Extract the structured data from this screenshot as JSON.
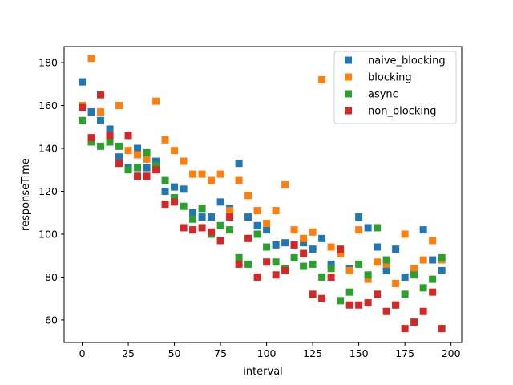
{
  "chart_data": {
    "type": "scatter",
    "title": "",
    "xlabel": "interval",
    "ylabel": "responseTime",
    "xlim": [
      -9.8,
      205.8
    ],
    "ylim": [
      49.5,
      187.5
    ],
    "xticks": [
      0,
      25,
      50,
      75,
      100,
      125,
      150,
      175,
      200
    ],
    "yticks": [
      60,
      80,
      100,
      120,
      140,
      160,
      180
    ],
    "grid": false,
    "legend_position": "upper right",
    "x": [
      0,
      5,
      10,
      15,
      20,
      25,
      30,
      35,
      40,
      45,
      50,
      55,
      60,
      65,
      70,
      75,
      80,
      85,
      90,
      95,
      100,
      105,
      110,
      115,
      120,
      125,
      130,
      135,
      140,
      145,
      150,
      155,
      160,
      165,
      170,
      175,
      180,
      185,
      190,
      195
    ],
    "series": [
      {
        "name": "naive_blocking",
        "color": "#1f77b4",
        "values": [
          171,
          157,
          153,
          149,
          136,
          131,
          140,
          131,
          134,
          120,
          122,
          121,
          110,
          108,
          108,
          115,
          112,
          133,
          108,
          104,
          102,
          95,
          96,
          95,
          96,
          93,
          98,
          86,
          92,
          84,
          108,
          103,
          94,
          83,
          93,
          80,
          82,
          102,
          88,
          83
        ]
      },
      {
        "name": "blocking",
        "color": "#ff7f0e",
        "values": [
          160,
          182,
          157,
          146,
          160,
          139,
          137,
          135,
          162,
          144,
          139,
          134,
          128,
          128,
          125,
          128,
          111,
          125,
          118,
          111,
          105,
          111,
          123,
          102,
          98,
          101,
          172,
          94,
          91,
          83,
          102,
          79,
          87,
          86,
          77,
          100,
          84,
          88,
          97,
          88
        ]
      },
      {
        "name": "async",
        "color": "#2ca02c",
        "values": [
          153,
          143,
          141,
          143,
          141,
          130,
          131,
          138,
          132,
          125,
          117,
          113,
          107,
          112,
          100,
          104,
          102,
          89,
          86,
          100,
          94,
          87,
          84,
          89,
          85,
          86,
          80,
          84,
          69,
          73,
          86,
          81,
          103,
          88,
          67,
          72,
          81,
          75,
          79,
          89
        ]
      },
      {
        "name": "non_blocking",
        "color": "#d62728",
        "values": [
          159,
          145,
          165,
          146,
          133,
          146,
          127,
          127,
          130,
          114,
          115,
          103,
          102,
          103,
          101,
          97,
          108,
          86,
          98,
          80,
          87,
          81,
          83,
          95,
          91,
          72,
          70,
          80,
          93,
          67,
          67,
          68,
          72,
          64,
          67,
          56,
          59,
          64,
          73,
          56
        ]
      }
    ]
  }
}
